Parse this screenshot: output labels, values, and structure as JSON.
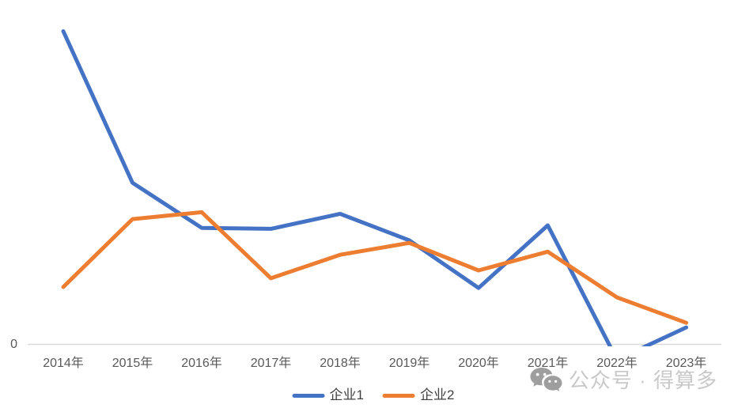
{
  "chart_data": {
    "type": "line",
    "categories": [
      "2014年",
      "2015年",
      "2016年",
      "2017年",
      "2018年",
      "2019年",
      "2020年",
      "2021年",
      "2022年",
      "2023年"
    ],
    "series": [
      {
        "name": "企业1",
        "color": "#4472C4",
        "values": [
          100,
          51.6,
          37.2,
          36.9,
          41.7,
          33.2,
          18.0,
          38.0,
          -4.9,
          5.4
        ]
      },
      {
        "name": "企业2",
        "color": "#ED7D31",
        "values": [
          18.3,
          40.0,
          42.2,
          21.1,
          28.6,
          32.4,
          23.6,
          29.6,
          15.0,
          6.9
        ]
      }
    ],
    "title": "",
    "xlabel": "",
    "ylabel": "",
    "y_axis_ticks": [
      "0"
    ],
    "ylim": [
      -8,
      105
    ],
    "grid": false,
    "legend_position": "bottom",
    "note": "values are relative units estimated from pixels; only the 0 baseline is labeled"
  },
  "watermark": {
    "icon": "wechat-icon",
    "text": "公众号 · 得算多"
  },
  "colors": {
    "series1": "#4472C4",
    "series2": "#ED7D31",
    "axis-line": "#D9D9D9",
    "tick-label": "#595959",
    "legend-label": "#404040",
    "watermark": "#C9C9C9"
  }
}
